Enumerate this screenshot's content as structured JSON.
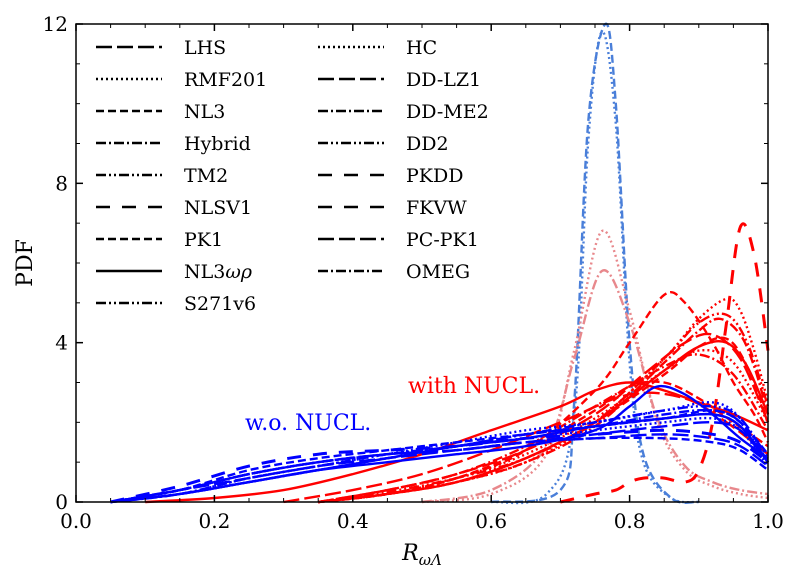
{
  "chart_data": {
    "type": "line",
    "xlabel": "R_{ωΛ}",
    "ylabel": "PDF",
    "xlim": [
      0.0,
      1.0
    ],
    "ylim": [
      0,
      12
    ],
    "xticks": [
      "0.0",
      "0.2",
      "0.4",
      "0.6",
      "0.8",
      "1.0"
    ],
    "yticks": [
      "0",
      "4",
      "8",
      "12"
    ],
    "grid": false,
    "legend_placement": "top-left, two columns",
    "colors": {
      "with_nucl": "#ff0000",
      "without_nucl": "#0000ff",
      "reference_blue": "#4a7fd9",
      "reference_pink": "#e8888c"
    },
    "legend": [
      "LHS",
      "RMF201",
      "NL3",
      "Hybrid",
      "TM2",
      "NLSV1",
      "PK1",
      "NL3ωρ",
      "S271v6",
      "HC",
      "DD-LZ1",
      "DD-ME2",
      "DD2",
      "PKDD",
      "FKVW",
      "PC-PK1",
      "OMEG"
    ],
    "annotations": {
      "with": "with NUCL.",
      "without": "w.o. NUCL."
    },
    "series": [
      {
        "group": "reference-blue",
        "style": "dotted",
        "x": [
          0.6,
          0.68,
          0.72,
          0.74,
          0.76,
          0.78,
          0.8,
          0.82,
          0.86,
          0.9
        ],
        "y": [
          0,
          0.2,
          2.2,
          9.0,
          11.8,
          9.5,
          3.5,
          1.0,
          0.1,
          0
        ]
      },
      {
        "group": "reference-blue",
        "style": "dashed",
        "x": [
          0.6,
          0.7,
          0.72,
          0.74,
          0.765,
          0.78,
          0.8,
          0.82,
          0.86,
          0.9
        ],
        "y": [
          0,
          0.3,
          2.5,
          9.5,
          12.0,
          10.0,
          4.0,
          1.2,
          0.1,
          0
        ]
      },
      {
        "group": "reference-pink",
        "style": "dotted",
        "x": [
          0.5,
          0.6,
          0.68,
          0.72,
          0.76,
          0.8,
          0.84,
          0.88,
          0.92,
          0.96,
          1.0
        ],
        "y": [
          0,
          0.2,
          1.2,
          3.8,
          6.8,
          4.8,
          2.0,
          0.8,
          0.4,
          0.2,
          0.1
        ]
      },
      {
        "group": "reference-pink",
        "style": "dashdot",
        "x": [
          0.5,
          0.6,
          0.68,
          0.72,
          0.76,
          0.8,
          0.84,
          0.88,
          0.92,
          0.96,
          1.0
        ],
        "y": [
          0,
          0.3,
          1.4,
          3.6,
          5.8,
          4.5,
          2.1,
          0.9,
          0.5,
          0.3,
          0.2
        ]
      },
      {
        "group": "with",
        "style": "solid",
        "x": [
          0.1,
          0.2,
          0.3,
          0.4,
          0.5,
          0.6,
          0.7,
          0.75,
          0.8,
          0.85,
          0.9,
          0.95,
          1.0
        ],
        "y": [
          0,
          0.1,
          0.3,
          0.7,
          1.2,
          1.8,
          2.4,
          2.8,
          3.0,
          2.8,
          2.5,
          2.2,
          1.8
        ]
      },
      {
        "group": "with",
        "style": "dashed",
        "x": [
          0.35,
          0.45,
          0.55,
          0.65,
          0.75,
          0.8,
          0.85,
          0.88,
          0.92,
          0.95,
          0.98,
          1.0
        ],
        "y": [
          0,
          0.2,
          0.6,
          1.3,
          2.8,
          4.0,
          5.2,
          5.0,
          4.0,
          3.0,
          2.2,
          1.5
        ]
      },
      {
        "group": "with",
        "style": "dotted",
        "x": [
          0.35,
          0.45,
          0.55,
          0.65,
          0.75,
          0.85,
          0.9,
          0.94,
          0.96,
          0.98,
          1.0
        ],
        "y": [
          0,
          0.2,
          0.5,
          1.0,
          2.0,
          3.6,
          4.6,
          5.1,
          4.8,
          3.8,
          2.5
        ]
      },
      {
        "group": "with",
        "style": "dashdot",
        "x": [
          0.35,
          0.45,
          0.55,
          0.65,
          0.75,
          0.85,
          0.9,
          0.93,
          0.96,
          0.98,
          1.0
        ],
        "y": [
          0,
          0.2,
          0.5,
          1.0,
          1.9,
          3.5,
          4.3,
          4.6,
          4.2,
          3.4,
          2.2
        ]
      },
      {
        "group": "with",
        "style": "dashdotdot",
        "x": [
          0.35,
          0.45,
          0.55,
          0.65,
          0.75,
          0.85,
          0.9,
          0.94,
          0.97,
          1.0
        ],
        "y": [
          0,
          0.25,
          0.6,
          1.1,
          2.0,
          3.6,
          4.5,
          4.7,
          4.0,
          2.4
        ]
      },
      {
        "group": "with",
        "style": "longdash",
        "x": [
          0.35,
          0.45,
          0.55,
          0.65,
          0.75,
          0.82,
          0.88,
          0.92,
          0.96,
          1.0
        ],
        "y": [
          0,
          0.3,
          0.7,
          1.3,
          2.2,
          3.2,
          4.0,
          4.2,
          3.6,
          2.0
        ]
      },
      {
        "group": "with",
        "style": "dashed",
        "x": [
          0.35,
          0.45,
          0.55,
          0.65,
          0.75,
          0.85,
          0.9,
          0.94,
          0.97,
          1.0
        ],
        "y": [
          0,
          0.2,
          0.5,
          1.1,
          2.0,
          3.2,
          3.9,
          4.1,
          3.4,
          2.0
        ]
      },
      {
        "group": "with",
        "style": "bigdash",
        "x": [
          0.7,
          0.75,
          0.78,
          0.8,
          0.82,
          0.85,
          0.88,
          0.9,
          0.92,
          0.94,
          0.96,
          0.98,
          1.0
        ],
        "y": [
          0,
          0.2,
          0.3,
          0.5,
          0.6,
          0.6,
          0.5,
          0.8,
          2.0,
          4.5,
          6.9,
          6.2,
          3.8
        ]
      },
      {
        "group": "with",
        "style": "dotted",
        "x": [
          0.35,
          0.45,
          0.55,
          0.65,
          0.75,
          0.85,
          0.9,
          0.95,
          1.0
        ],
        "y": [
          0,
          0.2,
          0.6,
          1.2,
          2.1,
          3.3,
          3.8,
          3.5,
          2.0
        ]
      },
      {
        "group": "with",
        "style": "dashdot",
        "x": [
          0.35,
          0.45,
          0.55,
          0.65,
          0.75,
          0.85,
          0.9,
          0.95,
          1.0
        ],
        "y": [
          0,
          0.3,
          0.7,
          1.4,
          2.4,
          3.4,
          3.7,
          3.2,
          1.8
        ]
      },
      {
        "group": "with",
        "style": "dashed",
        "x": [
          0.35,
          0.45,
          0.55,
          0.65,
          0.75,
          0.8,
          0.85,
          0.9,
          0.95,
          1.0
        ],
        "y": [
          0,
          0.2,
          0.6,
          1.3,
          2.3,
          2.9,
          3.0,
          2.6,
          2.0,
          1.4
        ]
      },
      {
        "group": "with",
        "style": "longdash",
        "x": [
          0.3,
          0.4,
          0.5,
          0.6,
          0.7,
          0.8,
          0.88,
          0.94,
          1.0
        ],
        "y": [
          0,
          0.3,
          0.7,
          1.3,
          2.0,
          2.7,
          2.6,
          2.0,
          1.2
        ]
      },
      {
        "group": "with",
        "style": "solid",
        "x": [
          0.35,
          0.45,
          0.55,
          0.65,
          0.75,
          0.85,
          0.9,
          0.94,
          0.97,
          1.0
        ],
        "y": [
          0,
          0.2,
          0.5,
          1.1,
          2.0,
          3.3,
          3.9,
          4.0,
          3.4,
          2.2
        ]
      },
      {
        "group": "without",
        "style": "solid",
        "x": [
          0.05,
          0.15,
          0.25,
          0.35,
          0.45,
          0.55,
          0.65,
          0.75,
          0.8,
          0.84,
          0.88,
          0.92,
          0.96,
          1.0
        ],
        "y": [
          0,
          0.2,
          0.5,
          0.8,
          1.0,
          1.2,
          1.4,
          1.8,
          2.4,
          2.9,
          2.7,
          2.2,
          1.6,
          1.1
        ]
      },
      {
        "group": "without",
        "style": "dashed",
        "x": [
          0.05,
          0.15,
          0.25,
          0.35,
          0.45,
          0.55,
          0.65,
          0.75,
          0.85,
          0.92,
          0.96,
          1.0
        ],
        "y": [
          0,
          0.3,
          0.8,
          1.1,
          1.3,
          1.5,
          1.7,
          1.9,
          2.1,
          2.3,
          2.0,
          1.2
        ]
      },
      {
        "group": "without",
        "style": "dotted",
        "x": [
          0.05,
          0.15,
          0.25,
          0.35,
          0.45,
          0.55,
          0.65,
          0.75,
          0.85,
          0.92,
          0.96,
          1.0
        ],
        "y": [
          0,
          0.2,
          0.6,
          0.9,
          1.2,
          1.5,
          1.8,
          2.0,
          2.3,
          2.5,
          2.1,
          1.0
        ]
      },
      {
        "group": "without",
        "style": "dashdot",
        "x": [
          0.05,
          0.15,
          0.25,
          0.35,
          0.45,
          0.55,
          0.65,
          0.75,
          0.85,
          0.92,
          0.96,
          1.0
        ],
        "y": [
          0,
          0.2,
          0.6,
          0.9,
          1.2,
          1.4,
          1.7,
          1.9,
          2.2,
          2.3,
          2.0,
          1.0
        ]
      },
      {
        "group": "without",
        "style": "dashdotdot",
        "x": [
          0.05,
          0.15,
          0.25,
          0.35,
          0.45,
          0.55,
          0.65,
          0.75,
          0.85,
          0.92,
          0.96,
          1.0
        ],
        "y": [
          0,
          0.2,
          0.5,
          0.8,
          1.1,
          1.4,
          1.7,
          2.0,
          2.3,
          2.4,
          2.1,
          1.1
        ]
      },
      {
        "group": "without",
        "style": "longdash",
        "x": [
          0.05,
          0.15,
          0.25,
          0.35,
          0.45,
          0.55,
          0.65,
          0.75,
          0.85,
          0.92,
          0.96,
          1.0
        ],
        "y": [
          0,
          0.3,
          0.7,
          1.0,
          1.2,
          1.3,
          1.5,
          1.6,
          1.7,
          1.6,
          1.4,
          0.9
        ]
      },
      {
        "group": "without",
        "style": "bigdash",
        "x": [
          0.05,
          0.15,
          0.25,
          0.35,
          0.45,
          0.55,
          0.65,
          0.75,
          0.85,
          0.92,
          0.96,
          1.0
        ],
        "y": [
          0,
          0.4,
          0.9,
          1.2,
          1.3,
          1.4,
          1.6,
          1.7,
          1.8,
          1.7,
          1.5,
          1.0
        ]
      },
      {
        "group": "without",
        "style": "dashed",
        "x": [
          0.05,
          0.15,
          0.25,
          0.35,
          0.45,
          0.55,
          0.65,
          0.75,
          0.85,
          0.92,
          0.96,
          1.0
        ],
        "y": [
          0,
          0.3,
          0.7,
          1.0,
          1.2,
          1.3,
          1.5,
          1.6,
          1.6,
          1.5,
          1.3,
          0.8
        ]
      },
      {
        "group": "without",
        "style": "dotted",
        "x": [
          0.05,
          0.15,
          0.25,
          0.35,
          0.45,
          0.55,
          0.65,
          0.75,
          0.85,
          0.92,
          0.96,
          1.0
        ],
        "y": [
          0,
          0.3,
          0.7,
          1.0,
          1.2,
          1.4,
          1.6,
          1.8,
          2.0,
          2.1,
          1.8,
          0.9
        ]
      },
      {
        "group": "without",
        "style": "solid",
        "x": [
          0.05,
          0.15,
          0.25,
          0.35,
          0.45,
          0.55,
          0.65,
          0.75,
          0.85,
          0.92,
          0.96,
          1.0
        ],
        "y": [
          0,
          0.2,
          0.5,
          0.8,
          1.1,
          1.4,
          1.6,
          1.9,
          2.1,
          2.2,
          1.9,
          1.0
        ]
      },
      {
        "group": "without",
        "style": "dashdot",
        "x": [
          0.05,
          0.15,
          0.25,
          0.35,
          0.45,
          0.55,
          0.65,
          0.75,
          0.85,
          0.92,
          0.96,
          1.0
        ],
        "y": [
          0,
          0.3,
          0.7,
          1.0,
          1.2,
          1.4,
          1.7,
          1.9,
          2.1,
          2.2,
          1.9,
          1.0
        ]
      },
      {
        "group": "without",
        "style": "longdash",
        "x": [
          0.05,
          0.15,
          0.25,
          0.35,
          0.45,
          0.55,
          0.65,
          0.75,
          0.85,
          0.92,
          0.96,
          1.0
        ],
        "y": [
          0,
          0.3,
          0.6,
          0.9,
          1.1,
          1.3,
          1.5,
          1.7,
          1.9,
          2.0,
          1.8,
          1.0
        ]
      }
    ]
  }
}
